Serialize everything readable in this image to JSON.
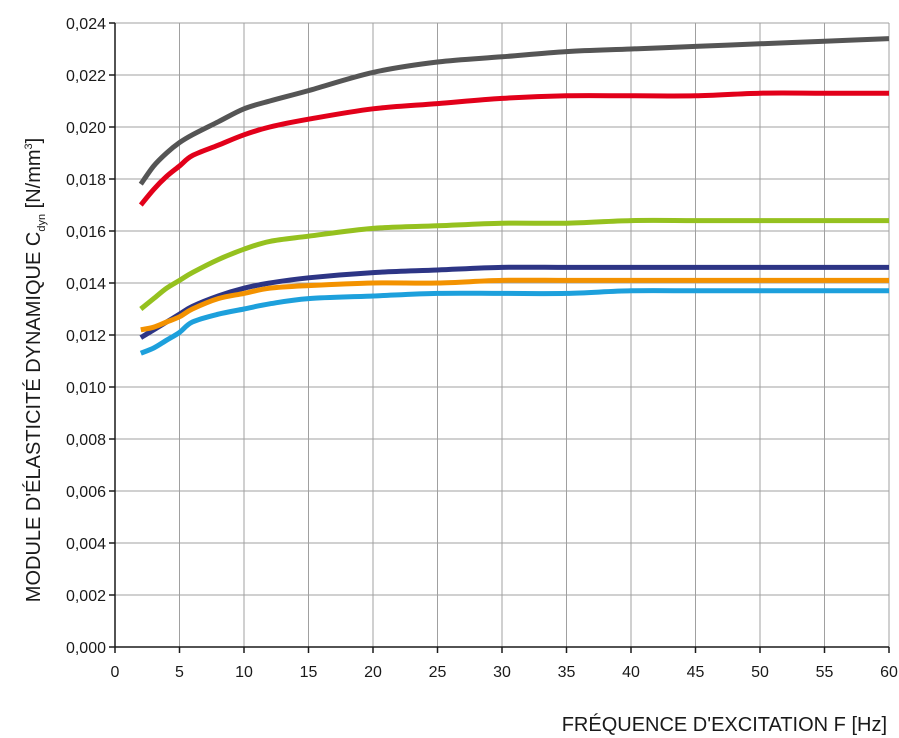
{
  "chart_data": {
    "type": "line",
    "title": "",
    "xlabel": "FRÉQUENCE D'EXCITATION F [Hz]",
    "ylabel": {
      "main": "MODULE D'ÉLASTICITÉ DYNAMIQUE C",
      "subscript": "dyn",
      "unit_open": " [N/mm",
      "unit_sup": "3",
      "unit_close": "]"
    },
    "xlim": [
      0,
      60
    ],
    "ylim": [
      0,
      0.024
    ],
    "xticks": [
      "0",
      "5",
      "10",
      "15",
      "20",
      "25",
      "30",
      "35",
      "40",
      "45",
      "50",
      "55",
      "60"
    ],
    "yticks": [
      "0,000",
      "0,002",
      "0,004",
      "0,006",
      "0,008",
      "0,010",
      "0,012",
      "0,014",
      "0,016",
      "0,018",
      "0,020",
      "0,022",
      "0,024"
    ],
    "grid": true,
    "legend": "none",
    "x": [
      2,
      3,
      4,
      5,
      6,
      8,
      10,
      12,
      15,
      20,
      25,
      30,
      35,
      40,
      45,
      50,
      55,
      60
    ],
    "series": [
      {
        "color": "#555555",
        "values": [
          0.0178,
          0.0185,
          0.019,
          0.0194,
          0.0197,
          0.0202,
          0.0207,
          0.021,
          0.0214,
          0.0221,
          0.0225,
          0.0227,
          0.0229,
          0.023,
          0.0231,
          0.0232,
          0.0233,
          0.0234
        ]
      },
      {
        "color": "#e2001a",
        "values": [
          0.017,
          0.0176,
          0.0181,
          0.0185,
          0.0189,
          0.0193,
          0.0197,
          0.02,
          0.0203,
          0.0207,
          0.0209,
          0.0211,
          0.0212,
          0.0212,
          0.0212,
          0.0213,
          0.0213,
          0.0213
        ]
      },
      {
        "color": "#95c11f",
        "values": [
          0.013,
          0.0134,
          0.0138,
          0.0141,
          0.0144,
          0.0149,
          0.0153,
          0.0156,
          0.0158,
          0.0161,
          0.0162,
          0.0163,
          0.0163,
          0.0164,
          0.0164,
          0.0164,
          0.0164,
          0.0164
        ]
      },
      {
        "color": "#2d3585",
        "values": [
          0.0119,
          0.0122,
          0.0125,
          0.0128,
          0.0131,
          0.0135,
          0.0138,
          0.014,
          0.0142,
          0.0144,
          0.0145,
          0.0146,
          0.0146,
          0.0146,
          0.0146,
          0.0146,
          0.0146,
          0.0146
        ]
      },
      {
        "color": "#f39200",
        "values": [
          0.0122,
          0.0123,
          0.0125,
          0.0127,
          0.013,
          0.0134,
          0.0136,
          0.0138,
          0.0139,
          0.014,
          0.014,
          0.0141,
          0.0141,
          0.0141,
          0.0141,
          0.0141,
          0.0141,
          0.0141
        ]
      },
      {
        "color": "#1da0dc",
        "values": [
          0.0113,
          0.0115,
          0.0118,
          0.0121,
          0.0125,
          0.0128,
          0.013,
          0.0132,
          0.0134,
          0.0135,
          0.0136,
          0.0136,
          0.0136,
          0.0137,
          0.0137,
          0.0137,
          0.0137,
          0.0137
        ]
      }
    ]
  }
}
